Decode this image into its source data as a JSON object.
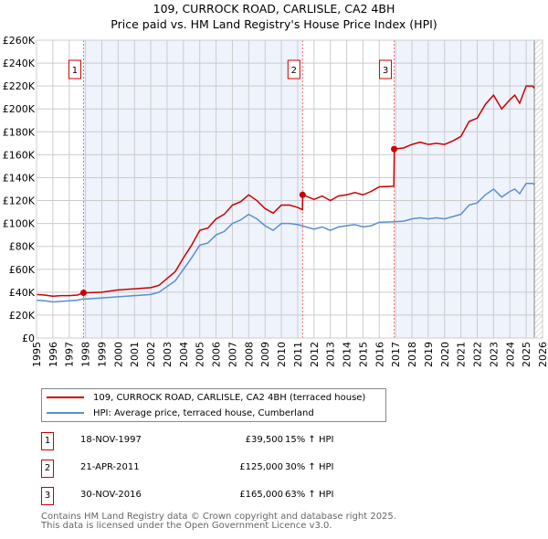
{
  "chart_data": {
    "type": "line",
    "title": "109, CURROCK ROAD, CARLISLE, CA2 4BH",
    "subtitle": "Price paid vs. HM Land Registry's House Price Index (HPI)",
    "xlim": [
      1995,
      2026
    ],
    "ylim": [
      0,
      260000
    ],
    "yticks": [
      0,
      20000,
      40000,
      60000,
      80000,
      100000,
      120000,
      140000,
      160000,
      180000,
      200000,
      220000,
      240000,
      260000
    ],
    "ytick_labels": [
      "£0",
      "£20K",
      "£40K",
      "£60K",
      "£80K",
      "£100K",
      "£120K",
      "£140K",
      "£160K",
      "£180K",
      "£200K",
      "£220K",
      "£240K",
      "£260K"
    ],
    "xticks": [
      "1995",
      "1996",
      "1997",
      "1998",
      "1999",
      "2000",
      "2001",
      "2002",
      "2003",
      "2004",
      "2005",
      "2006",
      "2007",
      "2008",
      "2009",
      "2010",
      "2011",
      "2012",
      "2013",
      "2014",
      "2015",
      "2016",
      "2017",
      "2018",
      "2019",
      "2020",
      "2021",
      "2022",
      "2023",
      "2024",
      "2025",
      "2026"
    ],
    "grid": true,
    "colors": {
      "property": "#cc0000",
      "hpi": "#5b8fd0",
      "shade": "#eef3fc",
      "vline": "#ff6666"
    },
    "x": [
      1995,
      1995.5,
      1996,
      1996.5,
      1997,
      1997.5,
      1997.88,
      1998,
      1999,
      2000,
      2001,
      2002,
      2002.5,
      2003,
      2003.5,
      2004,
      2004.5,
      2005,
      2005.5,
      2006,
      2006.5,
      2007,
      2007.5,
      2008,
      2008.5,
      2009,
      2009.5,
      2010,
      2010.5,
      2011,
      2011.29,
      2011.31,
      2011.5,
      2012,
      2012.5,
      2013,
      2013.5,
      2014,
      2014.5,
      2015,
      2015.5,
      2016,
      2016.89,
      2016.92,
      2017.5,
      2018,
      2018.5,
      2019,
      2019.5,
      2020,
      2020.5,
      2021,
      2021.5,
      2022,
      2022.5,
      2023,
      2023.5,
      2024,
      2024.3,
      2024.6,
      2025,
      2025.4,
      2025.5
    ],
    "series": [
      {
        "name": "109, CURROCK ROAD, CARLISLE, CA2 4BH (terraced house)",
        "values": [
          38000,
          37500,
          36500,
          37000,
          37000,
          37500,
          39500,
          39500,
          40000,
          42000,
          43000,
          44000,
          46000,
          52000,
          58000,
          70000,
          81000,
          94000,
          96000,
          104000,
          108000,
          116000,
          119000,
          125000,
          120000,
          113000,
          109000,
          116000,
          116000,
          114000,
          112000,
          125000,
          124000,
          121000,
          124000,
          120000,
          124000,
          125000,
          127000,
          125000,
          128000,
          132000,
          132500,
          165000,
          166000,
          169000,
          171000,
          169000,
          170000,
          169000,
          172000,
          176000,
          189000,
          192000,
          204000,
          212000,
          200000,
          208000,
          212000,
          205000,
          220000,
          220000,
          218000
        ]
      },
      {
        "name": "HPI: Average price, terraced house, Cumberland",
        "values": [
          33000,
          32500,
          31500,
          32000,
          32500,
          33000,
          34300,
          34000,
          35000,
          36000,
          37000,
          38000,
          40000,
          45000,
          50000,
          60000,
          70000,
          81000,
          83000,
          90000,
          93000,
          100000,
          103000,
          108000,
          104000,
          98000,
          94000,
          100000,
          100000,
          99000,
          98000,
          98000,
          97000,
          95000,
          97000,
          94000,
          97000,
          98000,
          99000,
          97000,
          98000,
          101000,
          101500,
          101500,
          102000,
          104000,
          105000,
          104000,
          105000,
          104000,
          106000,
          108000,
          116000,
          118000,
          125000,
          130000,
          123000,
          128000,
          130000,
          126000,
          135000,
          135000,
          134000
        ]
      }
    ],
    "sales": [
      {
        "num": "1",
        "x": 1997.88,
        "date": "18-NOV-1997",
        "price": 39500,
        "price_label": "£39,500",
        "hpi_label": "15% ↑ HPI"
      },
      {
        "num": "2",
        "x": 2011.3,
        "date": "21-APR-2011",
        "price": 125000,
        "price_label": "£125,000",
        "hpi_label": "30% ↑ HPI"
      },
      {
        "num": "3",
        "x": 2016.91,
        "date": "30-NOV-2016",
        "price": 165000,
        "price_label": "£165,000",
        "hpi_label": "63% ↑ HPI"
      }
    ],
    "forecast_start": 2025.5
  },
  "legend": {
    "property": "109, CURROCK ROAD, CARLISLE, CA2 4BH (terraced house)",
    "hpi": "HPI: Average price, terraced house, Cumberland"
  },
  "footer": {
    "line1": "Contains HM Land Registry data © Crown copyright and database right 2025.",
    "line2": "This data is licensed under the Open Government Licence v3.0."
  }
}
